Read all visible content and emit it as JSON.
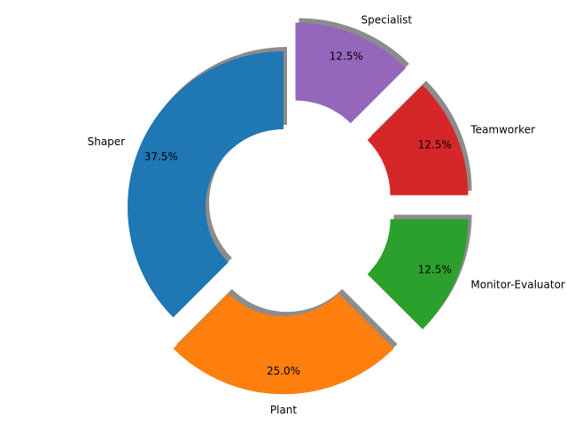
{
  "chart_data": {
    "type": "pie",
    "style": "donut",
    "title": "",
    "start_angle_deg": 90,
    "direction": "counterclockwise",
    "shadow": true,
    "hole_fraction": 0.5,
    "categories": [
      "Shaper",
      "Plant",
      "Monitor-Evaluator",
      "Teamworker",
      "Specialist"
    ],
    "values": [
      37.5,
      25.0,
      12.5,
      12.5,
      12.5
    ],
    "percent_labels": [
      "37.5%",
      "25.0%",
      "12.5%",
      "12.5%",
      "12.5%"
    ],
    "explode": [
      0,
      0.2,
      0.2,
      0.2,
      0.2
    ],
    "colors": [
      "#1f77b4",
      "#ff7f0e",
      "#2ca02c",
      "#d62728",
      "#9467bd"
    ]
  }
}
